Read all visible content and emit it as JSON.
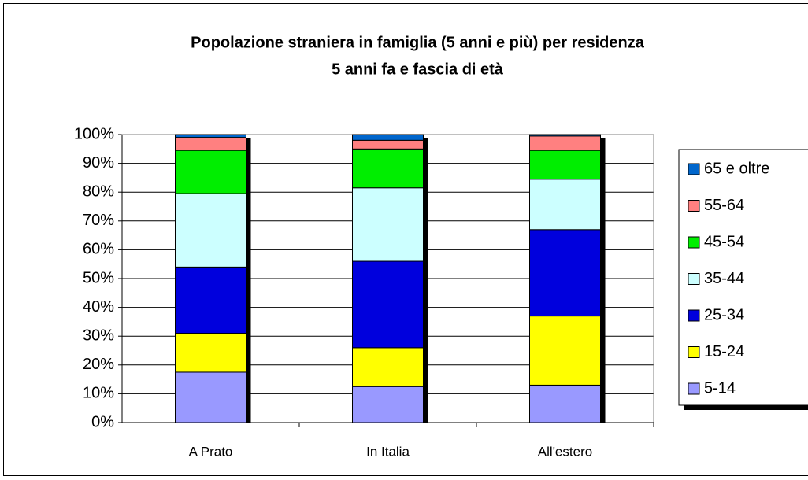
{
  "chart_data": {
    "type": "stacked_bar",
    "title": [
      "Popolazione straniera in famiglia (5 anni e più) per residenza",
      "5 anni fa e fascia di età"
    ],
    "categories": [
      "A Prato",
      "In Italia",
      "All'estero"
    ],
    "series": [
      {
        "name": "5-14",
        "color": "#9999ff",
        "values": [
          17.5,
          12.5,
          13
        ]
      },
      {
        "name": "15-24",
        "color": "#ffff00",
        "values": [
          13.5,
          13.5,
          24
        ]
      },
      {
        "name": "25-34",
        "color": "#0000dd",
        "values": [
          23,
          30,
          30
        ]
      },
      {
        "name": "35-44",
        "color": "#ccffff",
        "values": [
          25.5,
          25.5,
          17.5
        ]
      },
      {
        "name": "45-54",
        "color": "#00ee00",
        "values": [
          15,
          13.5,
          10
        ]
      },
      {
        "name": "55-64",
        "color": "#ff8080",
        "values": [
          4.5,
          3,
          5
        ]
      },
      {
        "name": "65 e oltre",
        "color": "#0066cc",
        "values": [
          1,
          2,
          0.5
        ]
      }
    ],
    "ylim": [
      0,
      100
    ],
    "yticks": [
      {
        "value": 0,
        "label": "0%"
      },
      {
        "value": 10,
        "label": "10%"
      },
      {
        "value": 20,
        "label": "20%"
      },
      {
        "value": 30,
        "label": "30%"
      },
      {
        "value": 40,
        "label": "40%"
      },
      {
        "value": 50,
        "label": "50%"
      },
      {
        "value": 60,
        "label": "60%"
      },
      {
        "value": 70,
        "label": "70%"
      },
      {
        "value": 80,
        "label": "80%"
      },
      {
        "value": 90,
        "label": "90%"
      },
      {
        "value": 100,
        "label": "100%"
      }
    ],
    "grid": true,
    "legend": "right"
  }
}
